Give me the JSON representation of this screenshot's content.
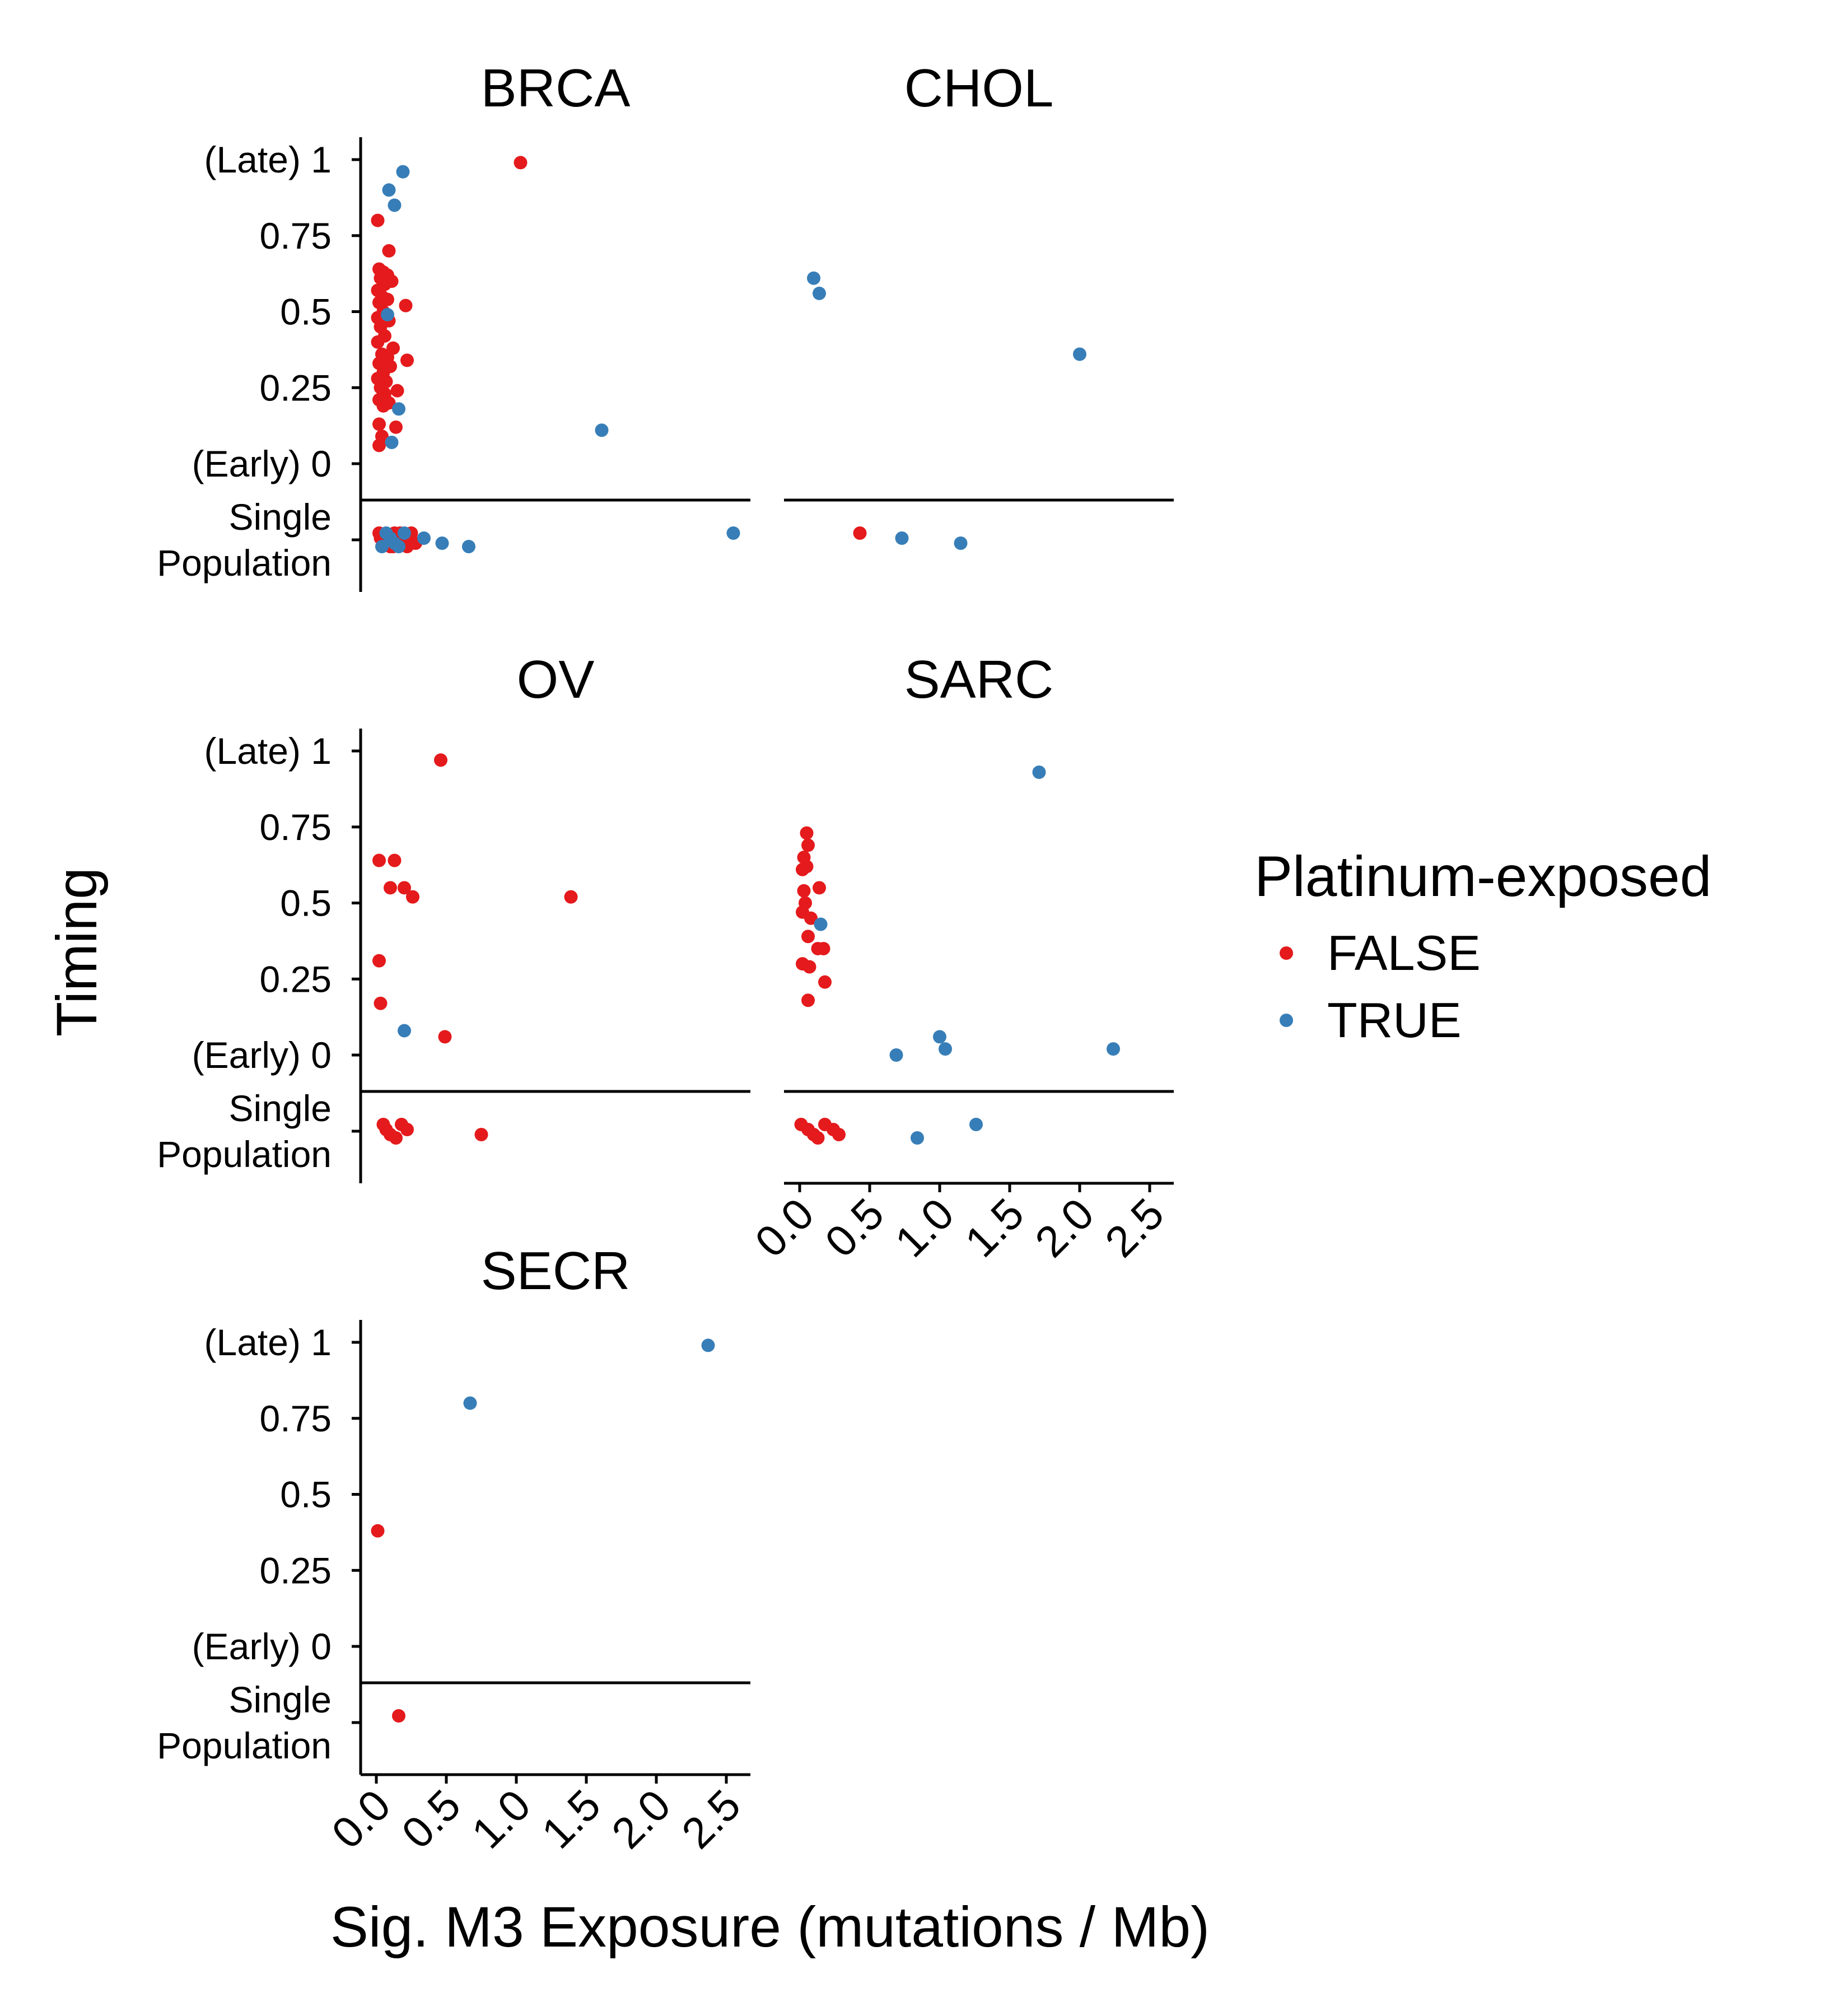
{
  "chart_data": {
    "type": "scatter",
    "facet_layout": "wrap, 2 columns",
    "xlabel": "Sig. M3 Exposure (mutations / Mb)",
    "ylabel": "Timing",
    "x_ticks": [
      "0.0",
      "0.5",
      "1.0",
      "1.5",
      "2.0",
      "2.5"
    ],
    "xlim": [
      -0.1,
      2.65
    ],
    "y_ticks": [
      "(Early) 0",
      "0.25",
      "0.5",
      "0.75",
      "(Late) 1"
    ],
    "y_tick_values": [
      0,
      0.25,
      0.5,
      0.75,
      1
    ],
    "ylim": [
      0,
      1
    ],
    "single_population_label": [
      "Single",
      "Population"
    ],
    "grid": false,
    "legend": {
      "title": "Platinum-exposed",
      "position": "right",
      "entries": [
        {
          "label": "FALSE",
          "color": "#E41A1C"
        },
        {
          "label": "TRUE",
          "color": "#377EB8"
        }
      ]
    },
    "panels": [
      {
        "name": "BRCA",
        "timed": [
          {
            "x": 1.03,
            "y": 0.99,
            "p": false
          },
          {
            "x": 0.01,
            "y": 0.8,
            "p": false
          },
          {
            "x": 0.09,
            "y": 0.7,
            "p": false
          },
          {
            "x": 0.02,
            "y": 0.64,
            "p": false
          },
          {
            "x": 0.05,
            "y": 0.63,
            "p": false
          },
          {
            "x": 0.08,
            "y": 0.62,
            "p": false
          },
          {
            "x": 0.03,
            "y": 0.61,
            "p": false
          },
          {
            "x": 0.11,
            "y": 0.6,
            "p": false
          },
          {
            "x": 0.06,
            "y": 0.59,
            "p": false
          },
          {
            "x": 0.01,
            "y": 0.57,
            "p": false
          },
          {
            "x": 0.04,
            "y": 0.55,
            "p": false
          },
          {
            "x": 0.08,
            "y": 0.54,
            "p": false
          },
          {
            "x": 0.02,
            "y": 0.53,
            "p": false
          },
          {
            "x": 0.21,
            "y": 0.52,
            "p": false
          },
          {
            "x": 0.05,
            "y": 0.5,
            "p": false
          },
          {
            "x": 0.01,
            "y": 0.48,
            "p": false
          },
          {
            "x": 0.09,
            "y": 0.47,
            "p": false
          },
          {
            "x": 0.03,
            "y": 0.45,
            "p": false
          },
          {
            "x": 0.06,
            "y": 0.42,
            "p": false
          },
          {
            "x": 0.01,
            "y": 0.4,
            "p": false
          },
          {
            "x": 0.12,
            "y": 0.38,
            "p": false
          },
          {
            "x": 0.04,
            "y": 0.36,
            "p": false
          },
          {
            "x": 0.08,
            "y": 0.35,
            "p": false
          },
          {
            "x": 0.22,
            "y": 0.34,
            "p": false
          },
          {
            "x": 0.02,
            "y": 0.33,
            "p": false
          },
          {
            "x": 0.1,
            "y": 0.32,
            "p": false
          },
          {
            "x": 0.05,
            "y": 0.3,
            "p": false
          },
          {
            "x": 0.01,
            "y": 0.28,
            "p": false
          },
          {
            "x": 0.07,
            "y": 0.27,
            "p": false
          },
          {
            "x": 0.03,
            "y": 0.25,
            "p": false
          },
          {
            "x": 0.15,
            "y": 0.24,
            "p": false
          },
          {
            "x": 0.06,
            "y": 0.23,
            "p": false
          },
          {
            "x": 0.02,
            "y": 0.21,
            "p": false
          },
          {
            "x": 0.09,
            "y": 0.2,
            "p": false
          },
          {
            "x": 0.05,
            "y": 0.19,
            "p": false
          },
          {
            "x": 0.02,
            "y": 0.13,
            "p": false
          },
          {
            "x": 0.14,
            "y": 0.12,
            "p": false
          },
          {
            "x": 0.04,
            "y": 0.09,
            "p": false
          },
          {
            "x": 0.02,
            "y": 0.06,
            "p": false
          },
          {
            "x": 0.19,
            "y": 0.96,
            "p": true
          },
          {
            "x": 0.09,
            "y": 0.9,
            "p": true
          },
          {
            "x": 0.13,
            "y": 0.85,
            "p": true
          },
          {
            "x": 0.08,
            "y": 0.49,
            "p": true
          },
          {
            "x": 0.16,
            "y": 0.18,
            "p": true
          },
          {
            "x": 1.61,
            "y": 0.11,
            "p": true
          },
          {
            "x": 0.11,
            "y": 0.07,
            "p": true
          }
        ],
        "single": [
          {
            "x": 0.02,
            "p": false
          },
          {
            "x": 0.05,
            "p": false
          },
          {
            "x": 0.08,
            "p": false
          },
          {
            "x": 0.1,
            "p": false
          },
          {
            "x": 0.13,
            "p": false
          },
          {
            "x": 0.16,
            "p": false
          },
          {
            "x": 0.19,
            "p": false
          },
          {
            "x": 0.22,
            "p": false
          },
          {
            "x": 0.25,
            "p": false
          },
          {
            "x": 0.03,
            "p": false
          },
          {
            "x": 0.07,
            "p": false
          },
          {
            "x": 0.12,
            "p": false
          },
          {
            "x": 0.17,
            "p": false
          },
          {
            "x": 0.21,
            "p": false
          },
          {
            "x": 0.28,
            "p": false
          },
          {
            "x": 0.04,
            "p": true
          },
          {
            "x": 0.07,
            "p": true
          },
          {
            "x": 0.1,
            "p": true
          },
          {
            "x": 0.13,
            "p": true
          },
          {
            "x": 0.16,
            "p": true
          },
          {
            "x": 0.2,
            "p": true
          },
          {
            "x": 0.34,
            "p": true
          },
          {
            "x": 0.47,
            "p": true
          },
          {
            "x": 0.66,
            "p": true
          },
          {
            "x": 2.55,
            "p": true
          }
        ]
      },
      {
        "name": "CHOL",
        "timed": [
          {
            "x": 0.1,
            "y": 0.61,
            "p": true
          },
          {
            "x": 0.14,
            "y": 0.56,
            "p": true
          },
          {
            "x": 2.0,
            "y": 0.36,
            "p": true
          }
        ],
        "single": [
          {
            "x": 0.43,
            "p": false
          },
          {
            "x": 0.73,
            "p": true
          },
          {
            "x": 1.15,
            "p": true
          }
        ]
      },
      {
        "name": "OV",
        "timed": [
          {
            "x": 0.46,
            "y": 0.97,
            "p": false
          },
          {
            "x": 0.02,
            "y": 0.64,
            "p": false
          },
          {
            "x": 0.13,
            "y": 0.64,
            "p": false
          },
          {
            "x": 0.1,
            "y": 0.55,
            "p": false
          },
          {
            "x": 0.2,
            "y": 0.55,
            "p": false
          },
          {
            "x": 0.26,
            "y": 0.52,
            "p": false
          },
          {
            "x": 1.39,
            "y": 0.52,
            "p": false
          },
          {
            "x": 0.02,
            "y": 0.31,
            "p": false
          },
          {
            "x": 0.03,
            "y": 0.17,
            "p": false
          },
          {
            "x": 0.49,
            "y": 0.06,
            "p": false
          },
          {
            "x": 0.2,
            "y": 0.08,
            "p": true
          }
        ],
        "single": [
          {
            "x": 0.05,
            "p": false
          },
          {
            "x": 0.07,
            "p": false
          },
          {
            "x": 0.1,
            "p": false
          },
          {
            "x": 0.14,
            "p": false
          },
          {
            "x": 0.18,
            "p": false
          },
          {
            "x": 0.22,
            "p": false
          },
          {
            "x": 0.75,
            "p": false
          }
        ]
      },
      {
        "name": "SARC",
        "timed": [
          {
            "x": 0.05,
            "y": 0.73,
            "p": false
          },
          {
            "x": 0.06,
            "y": 0.69,
            "p": false
          },
          {
            "x": 0.03,
            "y": 0.65,
            "p": false
          },
          {
            "x": 0.05,
            "y": 0.62,
            "p": false
          },
          {
            "x": 0.02,
            "y": 0.61,
            "p": false
          },
          {
            "x": 0.14,
            "y": 0.55,
            "p": false
          },
          {
            "x": 0.03,
            "y": 0.54,
            "p": false
          },
          {
            "x": 0.04,
            "y": 0.5,
            "p": false
          },
          {
            "x": 0.02,
            "y": 0.47,
            "p": false
          },
          {
            "x": 0.08,
            "y": 0.45,
            "p": false
          },
          {
            "x": 0.06,
            "y": 0.39,
            "p": false
          },
          {
            "x": 0.13,
            "y": 0.35,
            "p": false
          },
          {
            "x": 0.17,
            "y": 0.35,
            "p": false
          },
          {
            "x": 0.02,
            "y": 0.3,
            "p": false
          },
          {
            "x": 0.07,
            "y": 0.29,
            "p": false
          },
          {
            "x": 0.18,
            "y": 0.24,
            "p": false
          },
          {
            "x": 0.06,
            "y": 0.18,
            "p": false
          },
          {
            "x": 0.15,
            "y": 0.43,
            "p": true
          },
          {
            "x": 1.71,
            "y": 0.93,
            "p": true
          },
          {
            "x": 1.0,
            "y": 0.06,
            "p": true
          },
          {
            "x": 1.04,
            "y": 0.02,
            "p": true
          },
          {
            "x": 0.69,
            "y": 0.0,
            "p": true
          },
          {
            "x": 2.24,
            "y": 0.02,
            "p": true
          }
        ],
        "single": [
          {
            "x": 0.01,
            "p": false
          },
          {
            "x": 0.06,
            "p": false
          },
          {
            "x": 0.1,
            "p": false
          },
          {
            "x": 0.13,
            "p": false
          },
          {
            "x": 0.18,
            "p": false
          },
          {
            "x": 0.24,
            "p": false
          },
          {
            "x": 0.28,
            "p": false
          },
          {
            "x": 0.84,
            "p": true
          },
          {
            "x": 1.26,
            "p": true
          }
        ]
      },
      {
        "name": "SECR",
        "timed": [
          {
            "x": 0.01,
            "y": 0.38,
            "p": false
          },
          {
            "x": 0.67,
            "y": 0.8,
            "p": true
          },
          {
            "x": 2.37,
            "y": 0.99,
            "p": true
          }
        ],
        "single": [
          {
            "x": 0.16,
            "p": false
          }
        ]
      }
    ]
  }
}
